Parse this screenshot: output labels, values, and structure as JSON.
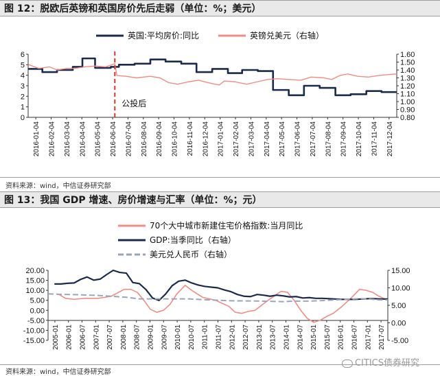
{
  "figure12": {
    "title": "图 12：脱欧后英镑和英国房价先后走弱（单位：%；美元）",
    "source": "资料来源：wind，中信证券研究部"
  },
  "figure13": {
    "title": "图 13：我国 GDP 增速、房价增速与汇率（单位：%；元）",
    "source": "资料来源：wind，中信证券研究部"
  },
  "watermark": "CITICS债券研究",
  "colors": {
    "navy": "#1b2a4a",
    "salmon": "#f08c84",
    "gray": "#9aa6b8",
    "marker": "#d9342b"
  },
  "chart_data": [
    {
      "type": "line",
      "title": "脱欧后英镑和英国房价先后走弱",
      "x_start": "2016-01-04",
      "x_end": "2017-12-31",
      "x_tick_labels": [
        "2016-01-04",
        "2016-02-04",
        "2016-03-04",
        "2016-04-04",
        "2016-05-04",
        "2016-06-04",
        "2016-07-04",
        "2016-08-04",
        "2016-09-04",
        "2016-10-04",
        "2016-11-04",
        "2016-12-04",
        "2017-01-04",
        "2017-02-04",
        "2017-03-04",
        "2017-04-04",
        "2017-05-04",
        "2017-06-04",
        "2017-07-04",
        "2017-08-04",
        "2017-09-04",
        "2017-10-04",
        "2017-11-04",
        "2017-12-04"
      ],
      "y_left": {
        "min": 0,
        "max": 6,
        "ticks": [
          "0",
          "1",
          "2",
          "3",
          "4",
          "5",
          "6"
        ]
      },
      "y_right": {
        "min": 0.8,
        "max": 1.6,
        "ticks": [
          "0.80",
          "0.90",
          "1.00",
          "1.10",
          "1.20",
          "1.30",
          "1.40",
          "1.50",
          "1.60"
        ]
      },
      "annotation": {
        "label": "公投后",
        "x": "2016-06-23"
      },
      "grid": false,
      "legend": "top",
      "series": [
        {
          "name": "英国:平均房价:同比",
          "axis": "left",
          "style": "step",
          "points": [
            [
              "2016-01-04",
              4.6
            ],
            [
              "2016-02-01",
              4.3
            ],
            [
              "2016-03-01",
              4.5
            ],
            [
              "2016-04-01",
              4.8
            ],
            [
              "2016-04-20",
              5.6
            ],
            [
              "2016-05-15",
              4.7
            ],
            [
              "2016-06-15",
              4.8
            ],
            [
              "2016-07-01",
              5.0
            ],
            [
              "2016-08-01",
              5.1
            ],
            [
              "2016-09-01",
              5.5
            ],
            [
              "2016-10-01",
              5.3
            ],
            [
              "2016-11-01",
              5.1
            ],
            [
              "2016-12-01",
              4.3
            ],
            [
              "2017-01-01",
              4.6
            ],
            [
              "2017-02-01",
              4.2
            ],
            [
              "2017-03-01",
              4.5
            ],
            [
              "2017-04-01",
              4.4
            ],
            [
              "2017-05-01",
              2.6
            ],
            [
              "2017-06-01",
              2.1
            ],
            [
              "2017-07-01",
              3.0
            ],
            [
              "2017-08-01",
              2.8
            ],
            [
              "2017-09-01",
              2.1
            ],
            [
              "2017-10-01",
              2.2
            ],
            [
              "2017-11-01",
              2.5
            ],
            [
              "2017-12-01",
              2.4
            ],
            [
              "2017-12-31",
              2.4
            ]
          ]
        },
        {
          "name": "英镑兑美元（右轴）",
          "axis": "right",
          "style": "line",
          "points": [
            [
              "2016-01-04",
              1.47
            ],
            [
              "2016-01-25",
              1.42
            ],
            [
              "2016-02-15",
              1.44
            ],
            [
              "2016-03-01",
              1.4
            ],
            [
              "2016-03-20",
              1.42
            ],
            [
              "2016-04-05",
              1.42
            ],
            [
              "2016-04-25",
              1.44
            ],
            [
              "2016-05-15",
              1.45
            ],
            [
              "2016-06-05",
              1.44
            ],
            [
              "2016-06-23",
              1.48
            ],
            [
              "2016-06-27",
              1.33
            ],
            [
              "2016-07-15",
              1.32
            ],
            [
              "2016-08-05",
              1.3
            ],
            [
              "2016-09-01",
              1.32
            ],
            [
              "2016-09-20",
              1.3
            ],
            [
              "2016-10-07",
              1.24
            ],
            [
              "2016-10-25",
              1.22
            ],
            [
              "2016-11-15",
              1.25
            ],
            [
              "2016-12-05",
              1.27
            ],
            [
              "2016-12-30",
              1.23
            ],
            [
              "2017-01-15",
              1.21
            ],
            [
              "2017-01-25",
              1.26
            ],
            [
              "2017-02-15",
              1.25
            ],
            [
              "2017-03-10",
              1.22
            ],
            [
              "2017-03-31",
              1.25
            ],
            [
              "2017-04-20",
              1.28
            ],
            [
              "2017-05-10",
              1.29
            ],
            [
              "2017-06-01",
              1.28
            ],
            [
              "2017-06-25",
              1.27
            ],
            [
              "2017-07-15",
              1.31
            ],
            [
              "2017-08-10",
              1.3
            ],
            [
              "2017-08-25",
              1.28
            ],
            [
              "2017-09-10",
              1.33
            ],
            [
              "2017-09-25",
              1.35
            ],
            [
              "2017-10-15",
              1.32
            ],
            [
              "2017-11-05",
              1.31
            ],
            [
              "2017-11-25",
              1.33
            ],
            [
              "2017-12-10",
              1.34
            ],
            [
              "2017-12-31",
              1.35
            ]
          ]
        }
      ]
    },
    {
      "type": "line",
      "title": "我国 GDP 增速、房价增速与汇率",
      "x_start": "2005-01-01",
      "x_end": "2017-12-31",
      "x_tick_labels": [
        "2005-01",
        "2006-01",
        "2006-07",
        "2007-01",
        "2007-07",
        "2008-01",
        "2008-07",
        "2009-01",
        "2009-07",
        "2010-01",
        "2010-07",
        "2011-01",
        "2011-07",
        "2012-01",
        "2012-07",
        "2013-01",
        "2013-07",
        "2014-01",
        "2014-07",
        "2015-01",
        "2015-07",
        "2016-01",
        "2016-07",
        "2017-01",
        "2017-07"
      ],
      "y_left": {
        "min": -15,
        "max": 20,
        "ticks": [
          "20.00",
          "15.00",
          "10.00",
          "5.00",
          "0.00",
          "-5.00",
          "-10.00",
          "-15.00"
        ]
      },
      "y_right": {
        "min": -5,
        "max": 15,
        "ticks": [
          "15.00",
          "10.00",
          "5.00",
          "0.00",
          "-5.00"
        ]
      },
      "grid": false,
      "legend": "top",
      "series": [
        {
          "name": "70个大中城市新建住宅价格指数:当月同比",
          "axis": "left",
          "style": "line",
          "points": [
            [
              "2005-06-01",
              8
            ],
            [
              "2005-09-01",
              6
            ],
            [
              "2006-01-01",
              5.5
            ],
            [
              "2006-06-01",
              6
            ],
            [
              "2006-12-01",
              6
            ],
            [
              "2007-06-01",
              7
            ],
            [
              "2007-12-01",
              10.5
            ],
            [
              "2008-03-01",
              10.5
            ],
            [
              "2008-06-01",
              9
            ],
            [
              "2008-09-01",
              5
            ],
            [
              "2008-12-01",
              0.5
            ],
            [
              "2009-03-01",
              -1
            ],
            [
              "2009-06-01",
              0
            ],
            [
              "2009-09-01",
              3
            ],
            [
              "2009-12-01",
              8
            ],
            [
              "2010-04-01",
              12.5
            ],
            [
              "2010-07-01",
              10
            ],
            [
              "2010-12-01",
              6.5
            ],
            [
              "2011-06-01",
              5
            ],
            [
              "2011-12-01",
              2
            ],
            [
              "2012-03-01",
              -1
            ],
            [
              "2012-06-01",
              -1.5
            ],
            [
              "2012-09-01",
              -0.5
            ],
            [
              "2012-12-01",
              0
            ],
            [
              "2013-06-01",
              5
            ],
            [
              "2013-12-01",
              9.5
            ],
            [
              "2014-03-01",
              9
            ],
            [
              "2014-06-01",
              5
            ],
            [
              "2014-09-01",
              0
            ],
            [
              "2014-12-01",
              -4
            ],
            [
              "2015-03-01",
              -6
            ],
            [
              "2015-06-01",
              -5
            ],
            [
              "2015-09-01",
              -3
            ],
            [
              "2015-12-01",
              -1.5
            ],
            [
              "2016-04-01",
              2
            ],
            [
              "2016-08-01",
              6
            ],
            [
              "2016-12-01",
              10.5
            ],
            [
              "2017-03-01",
              10
            ],
            [
              "2017-06-01",
              9
            ],
            [
              "2017-09-01",
              7
            ],
            [
              "2017-12-01",
              5.5
            ]
          ]
        },
        {
          "name": "GDP:当季同比（右轴）",
          "axis": "right",
          "style": "line",
          "points": [
            [
              "2005-03-31",
              11.1
            ],
            [
              "2005-06-30",
              11.1
            ],
            [
              "2005-09-30",
              11.3
            ],
            [
              "2005-12-31",
              11.4
            ],
            [
              "2006-03-31",
              12.4
            ],
            [
              "2006-06-30",
              13.1
            ],
            [
              "2006-09-30",
              12.2
            ],
            [
              "2006-12-31",
              12.5
            ],
            [
              "2007-03-31",
              13.8
            ],
            [
              "2007-06-30",
              15.0
            ],
            [
              "2007-09-30",
              14.4
            ],
            [
              "2007-12-31",
              14.2
            ],
            [
              "2008-03-31",
              11.5
            ],
            [
              "2008-06-30",
              11.2
            ],
            [
              "2008-09-30",
              9.5
            ],
            [
              "2008-12-31",
              7.1
            ],
            [
              "2009-03-31",
              6.4
            ],
            [
              "2009-06-30",
              8.2
            ],
            [
              "2009-09-30",
              10.6
            ],
            [
              "2009-12-31",
              11.9
            ],
            [
              "2010-03-31",
              12.2
            ],
            [
              "2010-06-30",
              11.4
            ],
            [
              "2010-09-30",
              10.8
            ],
            [
              "2010-12-31",
              10.4
            ],
            [
              "2011-03-31",
              10.2
            ],
            [
              "2011-06-30",
              10.0
            ],
            [
              "2011-09-30",
              9.4
            ],
            [
              "2011-12-31",
              8.9
            ],
            [
              "2012-03-31",
              8.1
            ],
            [
              "2012-06-30",
              7.6
            ],
            [
              "2012-09-30",
              7.5
            ],
            [
              "2012-12-31",
              8.1
            ],
            [
              "2013-03-31",
              7.9
            ],
            [
              "2013-06-30",
              7.6
            ],
            [
              "2013-09-30",
              7.9
            ],
            [
              "2013-12-31",
              7.7
            ],
            [
              "2014-03-31",
              7.4
            ],
            [
              "2014-06-30",
              7.5
            ],
            [
              "2014-09-30",
              7.1
            ],
            [
              "2014-12-31",
              7.2
            ],
            [
              "2015-03-31",
              7.0
            ],
            [
              "2015-06-30",
              7.0
            ],
            [
              "2015-09-30",
              6.9
            ],
            [
              "2015-12-31",
              6.8
            ],
            [
              "2016-03-31",
              6.7
            ],
            [
              "2016-06-30",
              6.7
            ],
            [
              "2016-09-30",
              6.7
            ],
            [
              "2016-12-31",
              6.8
            ],
            [
              "2017-03-31",
              6.9
            ],
            [
              "2017-06-30",
              6.9
            ],
            [
              "2017-09-30",
              6.8
            ],
            [
              "2017-12-31",
              6.8
            ]
          ]
        },
        {
          "name": "美元兑人民币（右轴）",
          "axis": "right",
          "style": "line",
          "points": [
            [
              "2005-01-01",
              8.28
            ],
            [
              "2005-07-21",
              8.11
            ],
            [
              "2006-01-01",
              8.07
            ],
            [
              "2007-01-01",
              7.8
            ],
            [
              "2008-01-01",
              7.3
            ],
            [
              "2008-07-01",
              6.83
            ],
            [
              "2010-06-01",
              6.83
            ],
            [
              "2011-01-01",
              6.6
            ],
            [
              "2012-01-01",
              6.3
            ],
            [
              "2013-01-01",
              6.23
            ],
            [
              "2014-01-01",
              6.05
            ],
            [
              "2014-06-01",
              6.2
            ],
            [
              "2015-01-01",
              6.2
            ],
            [
              "2015-08-11",
              6.4
            ],
            [
              "2016-01-01",
              6.55
            ],
            [
              "2016-12-01",
              6.9
            ],
            [
              "2017-03-01",
              6.88
            ],
            [
              "2017-09-01",
              6.55
            ],
            [
              "2017-12-31",
              6.55
            ]
          ]
        }
      ]
    }
  ]
}
